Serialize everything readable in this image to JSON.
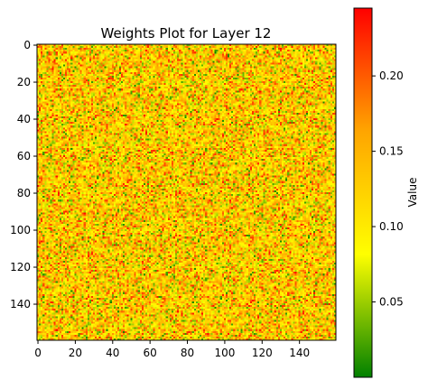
{
  "chart_data": {
    "type": "heatmap",
    "title": "Weights Plot for Layer 12",
    "xlabel": "",
    "ylabel": "",
    "rows": 160,
    "cols": 160,
    "x_ticks": [
      0,
      20,
      40,
      60,
      80,
      100,
      120,
      140
    ],
    "y_ticks": [
      0,
      20,
      40,
      60,
      80,
      100,
      120,
      140
    ],
    "y_axis_inverted": true,
    "colorbar": {
      "label": "Value",
      "min": 0.0,
      "max": 0.245,
      "ticks": [
        0.05,
        0.1,
        0.15,
        0.2
      ],
      "tick_labels": [
        "0.05",
        "0.10",
        "0.15",
        "0.20"
      ],
      "colormap": [
        "#008000",
        "#ffff00",
        "#ffa500",
        "#ff0000"
      ]
    },
    "value_distribution": {
      "description": "random per-cell weights, roughly uniform",
      "typical_min": 0.0,
      "typical_max": 0.245,
      "mean": 0.12
    },
    "grid": false
  }
}
